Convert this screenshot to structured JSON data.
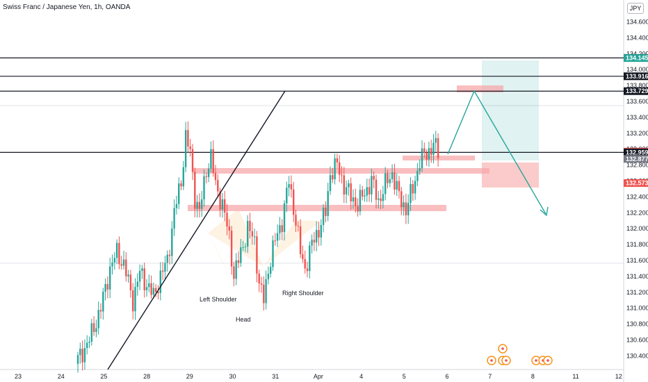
{
  "header": {
    "title": "Swiss Franc / Japanese Yen, 1h, OANDA",
    "currency": "JPY"
  },
  "colors": {
    "up": "#26a69a",
    "down": "#ef5350",
    "zone": "#f7a8ab",
    "orange": "#f7931a"
  },
  "chart_data": {
    "type": "candlestick",
    "symbol": "CHFJPY",
    "interval": "1h",
    "x_ticks": [
      "23",
      "24",
      "25",
      "28",
      "29",
      "30",
      "31",
      "Apr",
      "4",
      "5",
      "6",
      "7",
      "8",
      "11",
      "12"
    ],
    "y_ticks": [
      "134.600",
      "134.400",
      "134.200",
      "134.000",
      "133.800",
      "133.600",
      "133.400",
      "133.200",
      "133.000",
      "132.800",
      "132.600",
      "132.400",
      "132.200",
      "132.000",
      "131.800",
      "131.600",
      "131.400",
      "131.200",
      "131.000",
      "130.800",
      "130.600",
      "130.400"
    ],
    "ylim": [
      130.35,
      134.85
    ],
    "horizontal_levels": [
      134.147,
      133.916,
      133.729,
      132.959
    ],
    "price_labels": [
      {
        "text": "134.147",
        "value": 134.147,
        "bg": "#131722",
        "fg": "#ffffff"
      },
      {
        "text": "134.145",
        "value": 134.145,
        "bg": "#26a69a",
        "fg": "#ffffff"
      },
      {
        "text": "133.916",
        "value": 133.916,
        "bg": "#131722",
        "fg": "#ffffff"
      },
      {
        "text": "133.729",
        "value": 133.729,
        "bg": "#131722",
        "fg": "#ffffff"
      },
      {
        "text": "132.968",
        "value": 132.968,
        "bg": "#ef5350",
        "fg": "#ffffff",
        "sub": "29:51"
      },
      {
        "text": "132.959",
        "value": 132.959,
        "bg": "#131722",
        "fg": "#ffffff"
      },
      {
        "text": "132.877",
        "value": 132.877,
        "bg": "#787b86",
        "fg": "#ffffff"
      },
      {
        "text": "132.573",
        "value": 132.573,
        "bg": "#ef5350",
        "fg": "#ffffff"
      }
    ],
    "annotations": [
      {
        "text": "Left Shoulder"
      },
      {
        "text": "Head"
      },
      {
        "text": "Right Shoulder"
      }
    ],
    "position": {
      "entry": 132.959,
      "target": 134.145,
      "stop": 132.573
    }
  }
}
